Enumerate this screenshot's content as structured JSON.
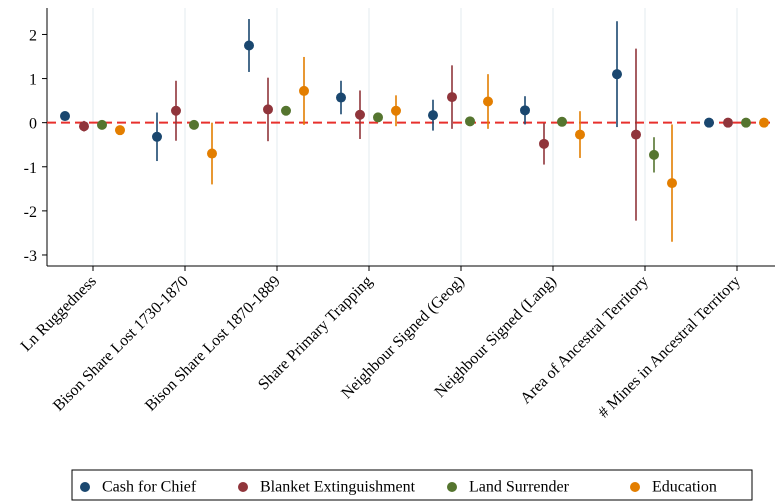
{
  "chart_data": {
    "type": "errorbar",
    "categories": [
      "Ln Ruggedness",
      "Bison Share Lost 1730-1870",
      "Bison Share Lost 1870-1889",
      "Share Primary Trapping",
      "Neighbour Signed (Geog)",
      "Neighbour Signed (Lang)",
      "Area of Ancestral Territory",
      "# Mines in Ancestral Territory"
    ],
    "series": [
      {
        "name": "Cash for Chief",
        "color": "#1a476f",
        "values": [
          0.15,
          -0.32,
          1.75,
          0.57,
          0.17,
          0.28,
          1.1,
          0.0
        ],
        "errors": [
          0.07,
          0.55,
          0.6,
          0.38,
          0.35,
          0.32,
          1.2,
          0.04
        ]
      },
      {
        "name": "Blanket Extinguishment",
        "color": "#90353b",
        "values": [
          -0.08,
          0.27,
          0.3,
          0.18,
          0.58,
          -0.48,
          -0.27,
          0.0
        ],
        "errors": [
          0.12,
          0.68,
          0.72,
          0.55,
          0.72,
          0.47,
          1.95,
          0.04
        ]
      },
      {
        "name": "Land Surrender",
        "color": "#55752f",
        "values": [
          -0.05,
          -0.05,
          0.27,
          0.12,
          0.03,
          0.02,
          -0.73,
          0.0
        ],
        "errors": [
          0.05,
          0.05,
          0.06,
          0.06,
          0.05,
          0.04,
          0.4,
          0.03
        ]
      },
      {
        "name": "Education",
        "color": "#e37e00",
        "values": [
          -0.17,
          -0.7,
          0.72,
          0.27,
          0.48,
          -0.27,
          -1.37,
          0.0
        ],
        "errors": [
          0.05,
          0.7,
          0.77,
          0.35,
          0.62,
          0.53,
          1.33,
          0.04
        ]
      }
    ],
    "ylim": [
      -3.25,
      2.6
    ],
    "yticks": [
      2,
      1,
      0,
      -1,
      -2,
      -3
    ],
    "reference_line": 0,
    "reference_color": "#e8302c",
    "grid": true
  }
}
